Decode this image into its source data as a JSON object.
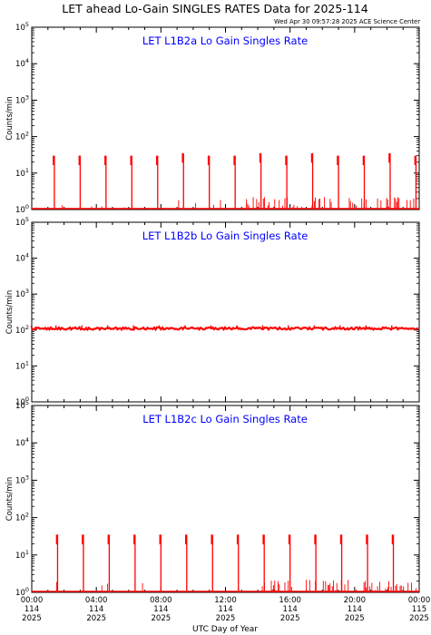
{
  "title": "LET ahead Lo-Gain SINGLES RATES Data for 2025-114",
  "timestamp": "Wed Apr 30 09:57:28 2025 ACE Science Center",
  "xlabel": "UTC Day of Year",
  "colors": {
    "data": "#ff0000",
    "panel_title": "#0000ff",
    "axis": "#000000"
  },
  "x_ticks": [
    {
      "time": "00:00",
      "doy": "114",
      "year": "2025"
    },
    {
      "time": "04:00",
      "doy": "114",
      "year": "2025"
    },
    {
      "time": "08:00",
      "doy": "114",
      "year": "2025"
    },
    {
      "time": "12:00",
      "doy": "114",
      "year": "2025"
    },
    {
      "time": "16:00",
      "doy": "114",
      "year": "2025"
    },
    {
      "time": "20:00",
      "doy": "114",
      "year": "2025"
    },
    {
      "time": "00:00",
      "doy": "115",
      "year": "2025"
    }
  ],
  "chart_data": [
    {
      "type": "line",
      "title": "LET L1B2a Lo Gain Singles Rate",
      "ylabel": "Counts/min",
      "yscale": "log",
      "ylim": [
        1,
        100000
      ],
      "xlim_hours": [
        0,
        24
      ],
      "y_ticks": [
        "10^0",
        "10^1",
        "10^2",
        "10^3",
        "10^4",
        "10^5"
      ],
      "baseline": 1,
      "spikes": [
        {
          "hour": 1.4,
          "value": 30
        },
        {
          "hour": 3.0,
          "value": 30
        },
        {
          "hour": 4.6,
          "value": 30
        },
        {
          "hour": 6.2,
          "value": 30
        },
        {
          "hour": 7.8,
          "value": 30
        },
        {
          "hour": 9.4,
          "value": 35
        },
        {
          "hour": 11.0,
          "value": 30
        },
        {
          "hour": 12.6,
          "value": 30
        },
        {
          "hour": 14.2,
          "value": 35
        },
        {
          "hour": 15.8,
          "value": 30
        },
        {
          "hour": 17.4,
          "value": 35
        },
        {
          "hour": 19.0,
          "value": 30
        },
        {
          "hour": 20.6,
          "value": 30
        },
        {
          "hour": 22.2,
          "value": 35
        },
        {
          "hour": 23.8,
          "value": 30
        }
      ]
    },
    {
      "type": "line",
      "title": "LET L1B2b Lo Gain Singles Rate",
      "ylabel": "Counts/min",
      "yscale": "log",
      "ylim": [
        1,
        100000
      ],
      "xlim_hours": [
        0,
        24
      ],
      "y_ticks": [
        "10^0",
        "10^1",
        "10^2",
        "10^3",
        "10^4",
        "10^5"
      ],
      "baseline": 110,
      "spikes": [
        {
          "hour": 1.5,
          "value": 135
        },
        {
          "hour": 3.1,
          "value": 135
        },
        {
          "hour": 4.7,
          "value": 135
        },
        {
          "hour": 6.3,
          "value": 135
        },
        {
          "hour": 7.9,
          "value": 135
        },
        {
          "hour": 9.5,
          "value": 135
        },
        {
          "hour": 11.1,
          "value": 135
        },
        {
          "hour": 12.7,
          "value": 135
        },
        {
          "hour": 14.3,
          "value": 135
        },
        {
          "hour": 15.9,
          "value": 135
        },
        {
          "hour": 17.5,
          "value": 135
        },
        {
          "hour": 19.1,
          "value": 135
        },
        {
          "hour": 20.7,
          "value": 135
        },
        {
          "hour": 22.3,
          "value": 135
        }
      ]
    },
    {
      "type": "line",
      "title": "LET L1B2c Lo Gain Singles Rate",
      "ylabel": "Counts/min",
      "yscale": "log",
      "ylim": [
        1,
        100000
      ],
      "xlim_hours": [
        0,
        24
      ],
      "y_ticks": [
        "10^0",
        "10^1",
        "10^2",
        "10^3",
        "10^4",
        "10^5"
      ],
      "baseline": 1,
      "spikes": [
        {
          "hour": 1.6,
          "value": 35
        },
        {
          "hour": 3.2,
          "value": 35
        },
        {
          "hour": 4.8,
          "value": 35
        },
        {
          "hour": 6.4,
          "value": 35
        },
        {
          "hour": 8.0,
          "value": 35
        },
        {
          "hour": 9.6,
          "value": 35
        },
        {
          "hour": 11.2,
          "value": 35
        },
        {
          "hour": 12.8,
          "value": 35
        },
        {
          "hour": 14.4,
          "value": 35
        },
        {
          "hour": 16.0,
          "value": 35
        },
        {
          "hour": 17.6,
          "value": 35
        },
        {
          "hour": 19.2,
          "value": 35
        },
        {
          "hour": 20.8,
          "value": 35
        },
        {
          "hour": 22.4,
          "value": 35
        }
      ]
    }
  ]
}
